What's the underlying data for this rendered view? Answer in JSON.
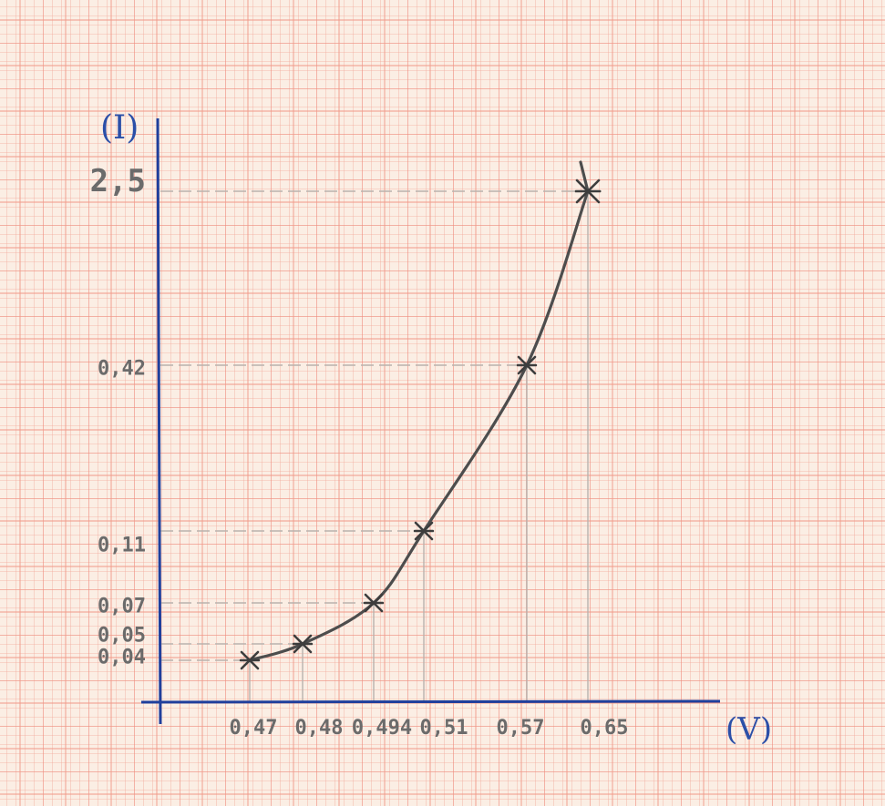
{
  "colors": {
    "paper": "#fbeee4",
    "grid_fine": "#f2a79a",
    "grid_major": "#ec7c6c",
    "axis": "#1f3f9c",
    "pencil": "#4d4d4d",
    "guide": "#b9b2ad"
  },
  "chart_data": {
    "type": "line",
    "title": "",
    "xlabel": "(V)",
    "ylabel": "(I)",
    "x_tick_labels": [
      "0,47",
      "0,48",
      "0,494",
      "0,51",
      "0,57",
      "0,65"
    ],
    "y_tick_labels": [
      "0,04",
      "0,05",
      "0,07",
      "0,11",
      "0,42",
      "2,5"
    ],
    "series": [
      {
        "x": [
          0.47,
          0.48,
          0.494,
          0.51,
          0.57,
          0.65
        ],
        "y": [
          0.04,
          0.05,
          0.07,
          0.11,
          0.42,
          2.5
        ]
      }
    ],
    "grid": true,
    "scale": "nonlinear-handdrawn"
  }
}
